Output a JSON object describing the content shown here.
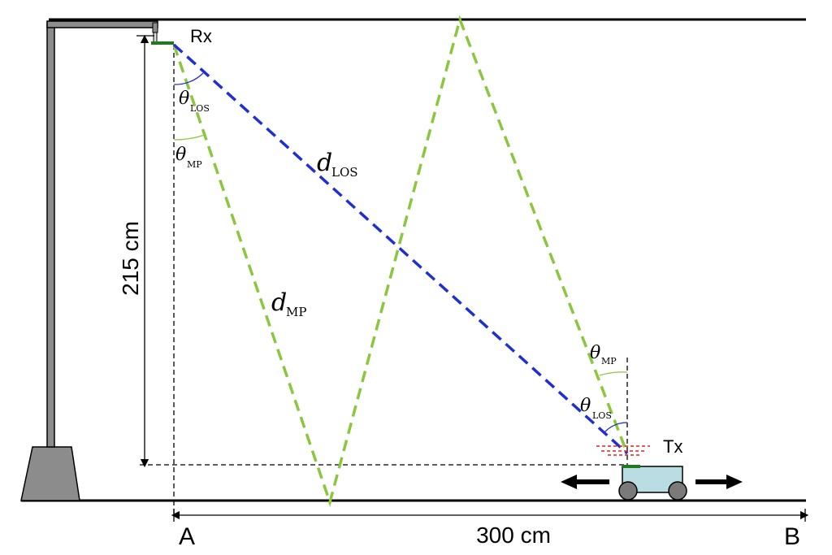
{
  "labels": {
    "rx": "Rx",
    "tx": "Tx",
    "point_a": "A",
    "point_b": "B",
    "height": "215 cm",
    "distance": "300 cm",
    "d_los_sym": "d",
    "d_los_sub": "LOS",
    "d_mp_sym": "d",
    "d_mp_sub": "MP",
    "theta_los_rx_sym": "θ",
    "theta_los_rx_sub": "LOS",
    "theta_mp_rx_sym": "θ",
    "theta_mp_rx_sub": "MP",
    "theta_mp_tx_sym": "θ",
    "theta_mp_tx_sub": "MP",
    "theta_los_tx_sym": "θ",
    "theta_los_tx_sub": "LOS"
  },
  "colors": {
    "los_path": "#1f2fd0",
    "mp_path": "#8cc63f",
    "pole": "#8c8c8c",
    "cart_body": "#b9dde3",
    "wheel": "#7a7a7a",
    "antenna": "#1e7a1e",
    "tx_beam": "#e0201e"
  }
}
